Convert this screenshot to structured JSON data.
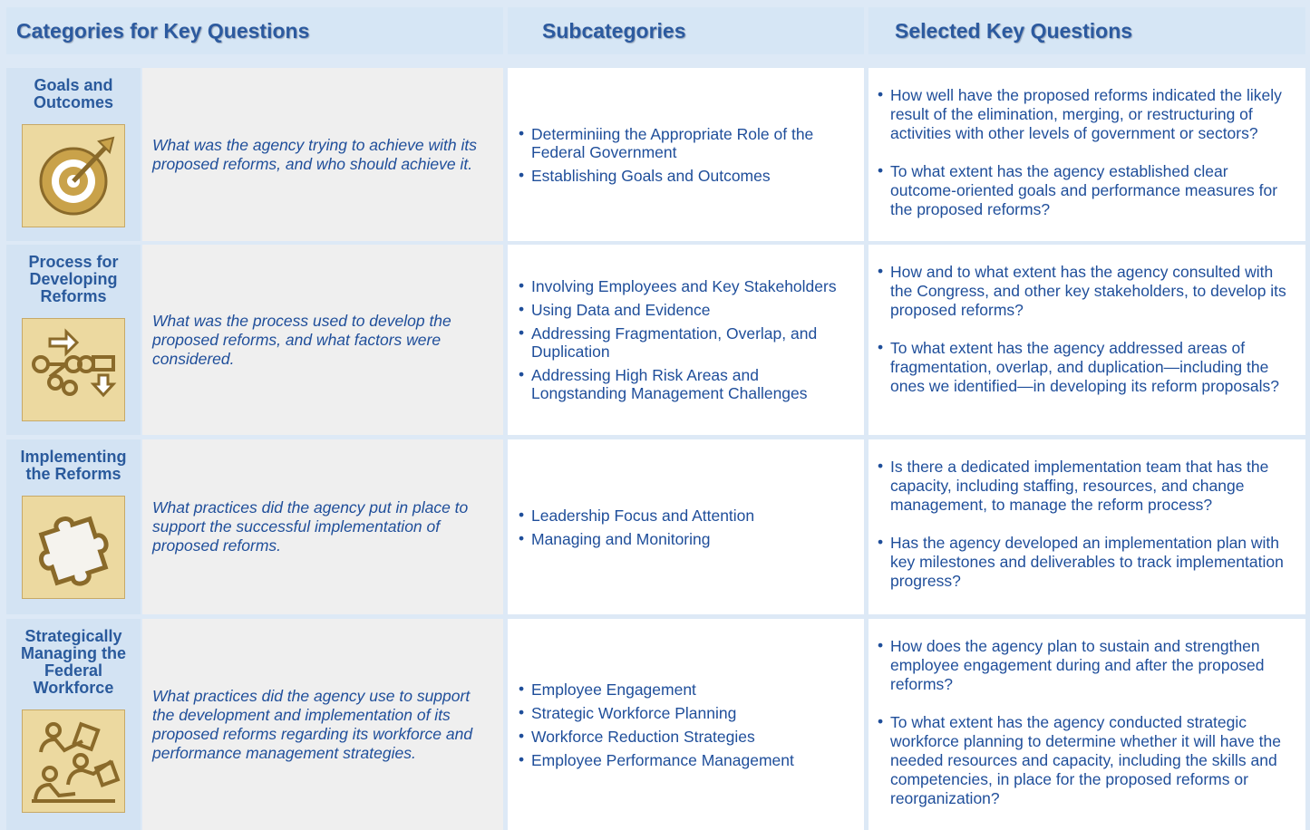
{
  "header": {
    "columns": [
      "Categories for Key Questions",
      "Subcategories",
      "Selected Key Questions"
    ]
  },
  "rows": [
    {
      "category": "Goals and Outcomes",
      "question": "What was the agency trying to achieve with its proposed reforms, and who should achieve it.",
      "subcategories": [
        "Determiniing the Appropriate Role of the Federal Government",
        "Establishing Goals and Outcomes"
      ],
      "key_questions": [
        "How well have the proposed reforms indicated the likely result of the elimination, merging, or restructuring of activities with other levels of government or sectors?",
        "To what extent has the agency established clear outcome-oriented goals and performance measures for the proposed reforms?"
      ]
    },
    {
      "category": "Process for Developing Reforms",
      "question": "What was the process used to develop the proposed reforms, and what factors were considered.",
      "subcategories": [
        "Involving Employees and Key Stakeholders",
        "Using Data and Evidence",
        "Addressing Fragmentation, Overlap, and Duplication",
        "Addressing High Risk Areas and Longstanding Management Challenges"
      ],
      "key_questions": [
        "How and to what extent has the agency consulted with the Congress, and other key stakeholders, to develop its proposed reforms?",
        "To what extent has the agency addressed areas of fragmentation, overlap, and duplication—including the ones we identified—in developing its reform proposals?"
      ]
    },
    {
      "category": "Implementing the Reforms",
      "question": "What practices did the agency put in place to support the successful implementation of proposed reforms.",
      "subcategories": [
        "Leadership Focus and Attention",
        "Managing and Monitoring"
      ],
      "key_questions": [
        "Is there a dedicated implementation team that has the capacity, including staffing, resources, and change management, to manage the reform process?",
        "Has the agency developed an implementation plan with key milestones and deliverables to track implementation progress?"
      ]
    },
    {
      "category": "Strategically Managing the Federal Workforce",
      "question": "What practices did the agency use to support the development and implementation of its proposed reforms regarding its workforce and performance management strategies.",
      "subcategories": [
        "Employee Engagement",
        "Strategic Workforce Planning",
        "Workforce Reduction Strategies",
        "Employee Performance Management"
      ],
      "key_questions": [
        "How does the agency plan to sustain and strengthen employee engagement during and after the proposed reforms?",
        "To what extent has the agency conducted strategic workforce planning to determine whether it will have the needed resources and capacity, including the skills and competencies, in place for the proposed reforms or reorganization?"
      ]
    }
  ]
}
